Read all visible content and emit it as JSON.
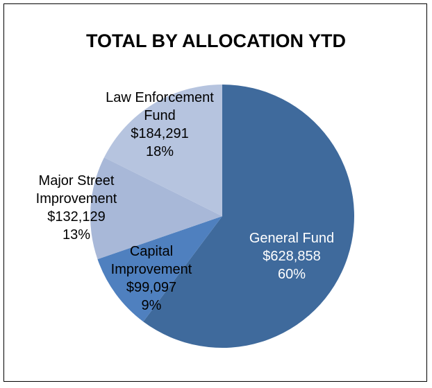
{
  "chart_data": {
    "type": "pie",
    "title": "TOTAL BY ALLOCATION YTD",
    "categories": [
      "General Fund",
      "Capital Improvement",
      "Major Street Improvement",
      "Law Enforcement Fund"
    ],
    "values": [
      628858,
      99097,
      132129,
      184291
    ],
    "value_labels": [
      "$628,858",
      "$99,097",
      "$132,129",
      "$184,291"
    ],
    "percent_labels": [
      "60%",
      "9%",
      "13%",
      "18%"
    ],
    "colors": [
      "#3f6a9c",
      "#4f80bf",
      "#a8b8d8",
      "#b6c4df"
    ]
  }
}
